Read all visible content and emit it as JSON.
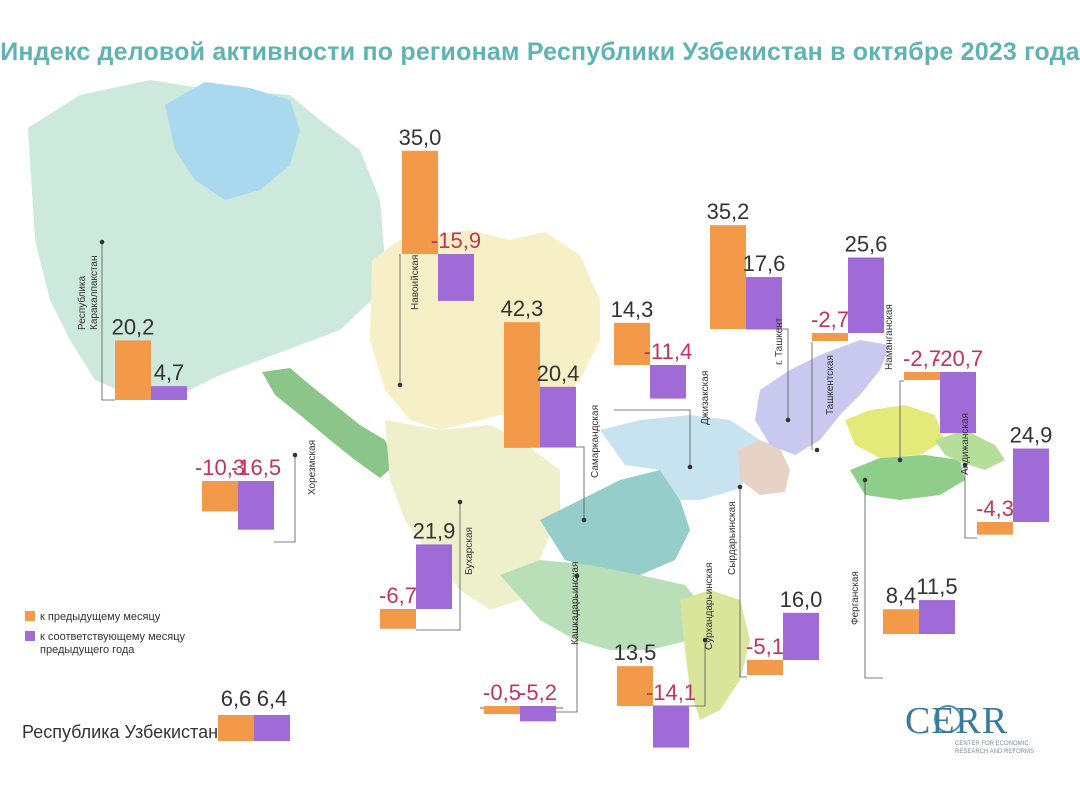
{
  "title": "Индекс деловой активности по регионам Республики Узбекистан в октябре 2023 года",
  "colors": {
    "orange": "#f29a4a",
    "purple": "#a06bd6",
    "negative_text": "#c3335c",
    "title": "#5fb3b3"
  },
  "legend": {
    "prev_month": "к предыдущему месяцу",
    "prev_year_line1": "к соответствующему месяцу",
    "prev_year_line2": "предыдущего года"
  },
  "national": {
    "label": "Республика Узбекистан",
    "prev_month": 6.6,
    "prev_year": 6.4,
    "prev_month_text": "6,6",
    "prev_year_text": "6,4"
  },
  "logo": {
    "name": "CERR",
    "subtitle_line1": "CENTER FOR ECONOMIC",
    "subtitle_line2": "RESEARCH AND REFORMS"
  },
  "chart_data": {
    "type": "bar",
    "series": [
      {
        "name": "к предыдущему месяцу",
        "color": "#f29a4a"
      },
      {
        "name": "к соответствующему месяцу предыдущего года",
        "color": "#a06bd6"
      }
    ],
    "regions": [
      {
        "id": "karakalpakstan",
        "name_lines": [
          "Республика",
          "Каракалпакстан"
        ],
        "prev_month": 20.2,
        "prev_year": 4.7,
        "prev_month_text": "20,2",
        "prev_year_text": "4,7"
      },
      {
        "id": "navoi",
        "name_lines": [
          "Навоийская"
        ],
        "prev_month": 35.0,
        "prev_year": -15.9,
        "prev_month_text": "35,0",
        "prev_year_text": "-15,9"
      },
      {
        "id": "samarkand",
        "name_lines": [
          "Самаркандская"
        ],
        "prev_month": 42.3,
        "prev_year": 20.4,
        "prev_month_text": "42,3",
        "prev_year_text": "20,4"
      },
      {
        "id": "jizzakh",
        "name_lines": [
          "Джизакская"
        ],
        "prev_month": 14.3,
        "prev_year": -11.4,
        "prev_month_text": "14,3",
        "prev_year_text": "-11,4"
      },
      {
        "id": "tashkent_city",
        "name_lines": [
          "г. Ташкент"
        ],
        "prev_month": 35.2,
        "prev_year": 17.6,
        "prev_month_text": "35,2",
        "prev_year_text": "17,6"
      },
      {
        "id": "tashkent_region",
        "name_lines": [
          "Ташкентская"
        ],
        "prev_month": -2.7,
        "prev_year": 25.6,
        "prev_month_text": "-2,7",
        "prev_year_text": "25,6"
      },
      {
        "id": "namangan",
        "name_lines": [
          "Наманганская"
        ],
        "prev_month": -2.7,
        "prev_year": -20.7,
        "prev_month_text": "-2,7",
        "prev_year_text": "-20,7"
      },
      {
        "id": "andijan",
        "name_lines": [
          "Андижанская"
        ],
        "prev_month": -4.3,
        "prev_year": 24.9,
        "prev_month_text": "-4,3",
        "prev_year_text": "24,9"
      },
      {
        "id": "khorezm",
        "name_lines": [
          "Хорезмская"
        ],
        "prev_month": -10.3,
        "prev_year": -16.5,
        "prev_month_text": "-10,3",
        "prev_year_text": "-16,5"
      },
      {
        "id": "bukhara",
        "name_lines": [
          "Бухарская"
        ],
        "prev_month": -6.7,
        "prev_year": 21.9,
        "prev_month_text": "-6,7",
        "prev_year_text": "21,9"
      },
      {
        "id": "kashkadarya",
        "name_lines": [
          "Кашкадарьинская"
        ],
        "prev_month": -0.5,
        "prev_year": -5.2,
        "prev_month_text": "-0,5",
        "prev_year_text": "-5,2"
      },
      {
        "id": "surkhandarya",
        "name_lines": [
          "Сурхандарьинская"
        ],
        "prev_month": 13.5,
        "prev_year": -14.1,
        "prev_month_text": "13,5",
        "prev_year_text": "-14,1"
      },
      {
        "id": "syrdarya",
        "name_lines": [
          "Сырдарьинская"
        ],
        "prev_month": -5.1,
        "prev_year": 16.0,
        "prev_month_text": "-5,1",
        "prev_year_text": "16,0"
      },
      {
        "id": "fergana",
        "name_lines": [
          "Ферганская"
        ],
        "prev_month": 8.4,
        "prev_year": 11.5,
        "prev_month_text": "8,4",
        "prev_year_text": "11,5"
      }
    ]
  }
}
